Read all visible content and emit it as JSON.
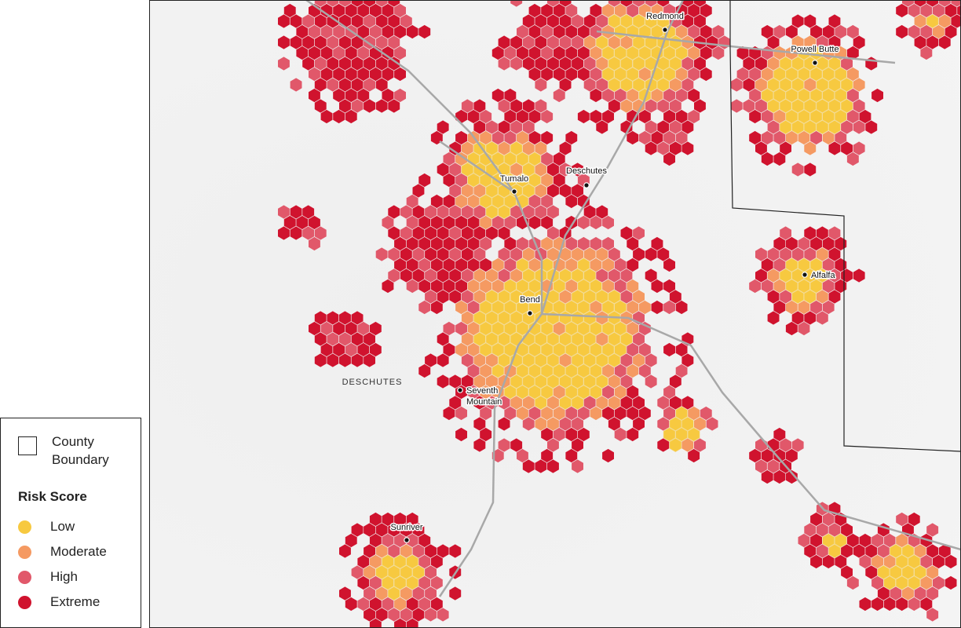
{
  "places": [
    {
      "label": "Redmond"
    },
    {
      "label": "Powell Butte"
    },
    {
      "label": "Tumalo"
    },
    {
      "label": "Deschutes"
    },
    {
      "label": "Bend"
    },
    {
      "label": "Seventh Mountain"
    },
    {
      "label": "Alfalfa"
    },
    {
      "label": "Sunriver"
    }
  ],
  "county_label": "DESCHUTES",
  "legend": {
    "boundary_label": "County Boundary",
    "title": "Risk Score",
    "items": [
      {
        "label": "Low",
        "color": "#f7c940"
      },
      {
        "label": "Moderate",
        "color": "#f59a62"
      },
      {
        "label": "High",
        "color": "#e1586a"
      },
      {
        "label": "Extreme",
        "color": "#d0132e"
      }
    ]
  }
}
